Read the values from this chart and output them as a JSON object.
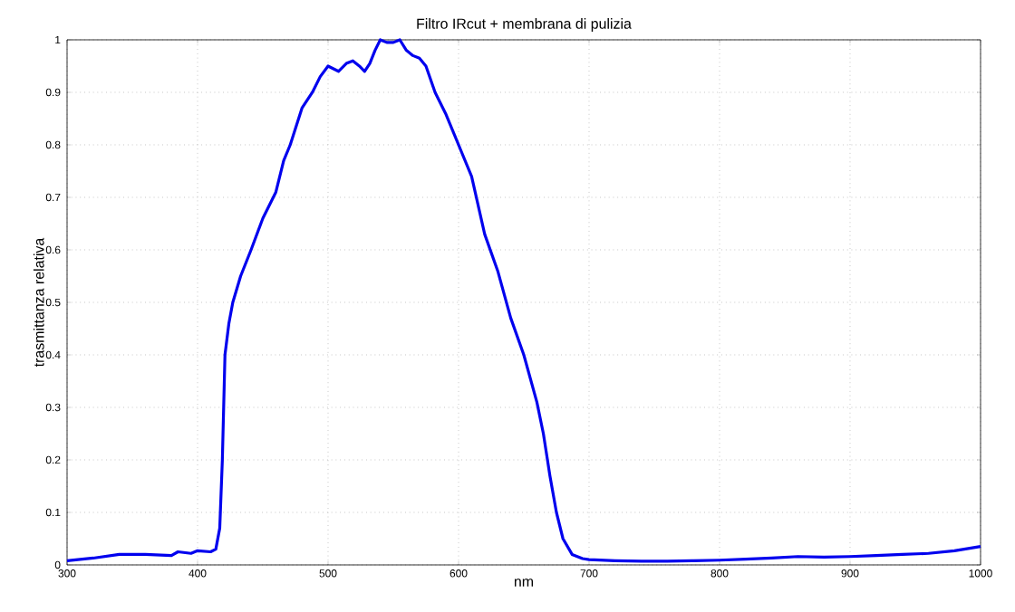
{
  "chart_data": {
    "type": "line",
    "title": "Filtro IRcut + membrana di pulizia",
    "xlabel": "nm",
    "ylabel": "trasmittanza relativa",
    "xlim": [
      300,
      1000
    ],
    "ylim": [
      0,
      1
    ],
    "xticks": [
      300,
      400,
      500,
      600,
      700,
      800,
      900,
      1000
    ],
    "yticks": [
      0,
      0.1,
      0.2,
      0.3,
      0.4,
      0.5,
      0.6,
      0.7,
      0.8,
      0.9,
      1
    ],
    "grid": true,
    "line_style": "dotted",
    "marker": "none",
    "series": [
      {
        "color": "#0000ee",
        "line_style": "solid",
        "x": [
          300,
          320,
          340,
          360,
          380,
          385,
          395,
          400,
          410,
          414,
          417,
          419,
          421,
          424,
          427,
          433,
          441,
          450,
          460,
          466,
          471,
          480,
          488,
          494,
          500,
          504,
          508,
          514,
          519,
          524,
          528,
          532,
          536,
          540,
          545,
          550,
          555,
          560,
          565,
          570,
          575,
          582,
          590,
          600,
          610,
          620,
          630,
          640,
          650,
          660,
          665,
          670,
          675,
          680,
          687,
          695,
          700,
          720,
          740,
          760,
          780,
          800,
          820,
          840,
          860,
          880,
          900,
          920,
          940,
          960,
          980,
          1000
        ],
        "values": [
          0.008,
          0.013,
          0.02,
          0.02,
          0.018,
          0.025,
          0.022,
          0.027,
          0.025,
          0.03,
          0.07,
          0.2,
          0.4,
          0.46,
          0.5,
          0.55,
          0.6,
          0.66,
          0.71,
          0.77,
          0.8,
          0.87,
          0.9,
          0.93,
          0.95,
          0.945,
          0.94,
          0.955,
          0.96,
          0.95,
          0.94,
          0.955,
          0.98,
          1.0,
          0.995,
          0.995,
          1.0,
          0.98,
          0.97,
          0.965,
          0.95,
          0.9,
          0.86,
          0.8,
          0.74,
          0.63,
          0.56,
          0.47,
          0.4,
          0.31,
          0.25,
          0.17,
          0.1,
          0.05,
          0.02,
          0.012,
          0.01,
          0.008,
          0.007,
          0.007,
          0.008,
          0.009,
          0.011,
          0.013,
          0.016,
          0.015,
          0.016,
          0.018,
          0.02,
          0.022,
          0.027,
          0.035
        ]
      }
    ]
  }
}
